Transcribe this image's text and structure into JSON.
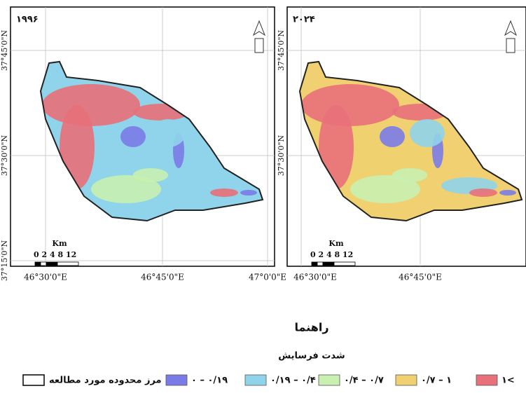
{
  "maps": [
    {
      "title": "۱۹۹۶",
      "lat_labels": [
        "37°45'0\"N",
        "37°30'0\"N",
        "37°15'0\"N"
      ],
      "lon_labels": [
        "46°30'0\"E",
        "46°45'0\"E",
        "47°0'0\"E"
      ],
      "scale_unit": "Km",
      "scale_ticks": "0 2 4 8 12"
    },
    {
      "title": "۲۰۲۴",
      "lat_labels": [
        "37°45'0\"N",
        "37°30'0\"N"
      ],
      "lon_labels": [
        "46°30'0\"E",
        "46°45'0\"E"
      ],
      "scale_unit": "Km",
      "scale_ticks": "0 2 4 8 12"
    }
  ],
  "legend": {
    "title": "راهنما",
    "subtitle": "شدت فرسایش",
    "boundary": "مرز محدوده مورد مطالعه",
    "items": [
      {
        "label": "۱<",
        "color": "#e8707a"
      },
      {
        "label": "۰/۷ – ۱",
        "color": "#f0d070"
      },
      {
        "label": "۰/۴ – ۰/۷",
        "color": "#c9f0b0"
      },
      {
        "label": "۰/۱۹ – ۰/۴",
        "color": "#8fd4ea"
      },
      {
        "label": "۰ – ۰/۱۹",
        "color": "#7b7be8"
      }
    ]
  }
}
